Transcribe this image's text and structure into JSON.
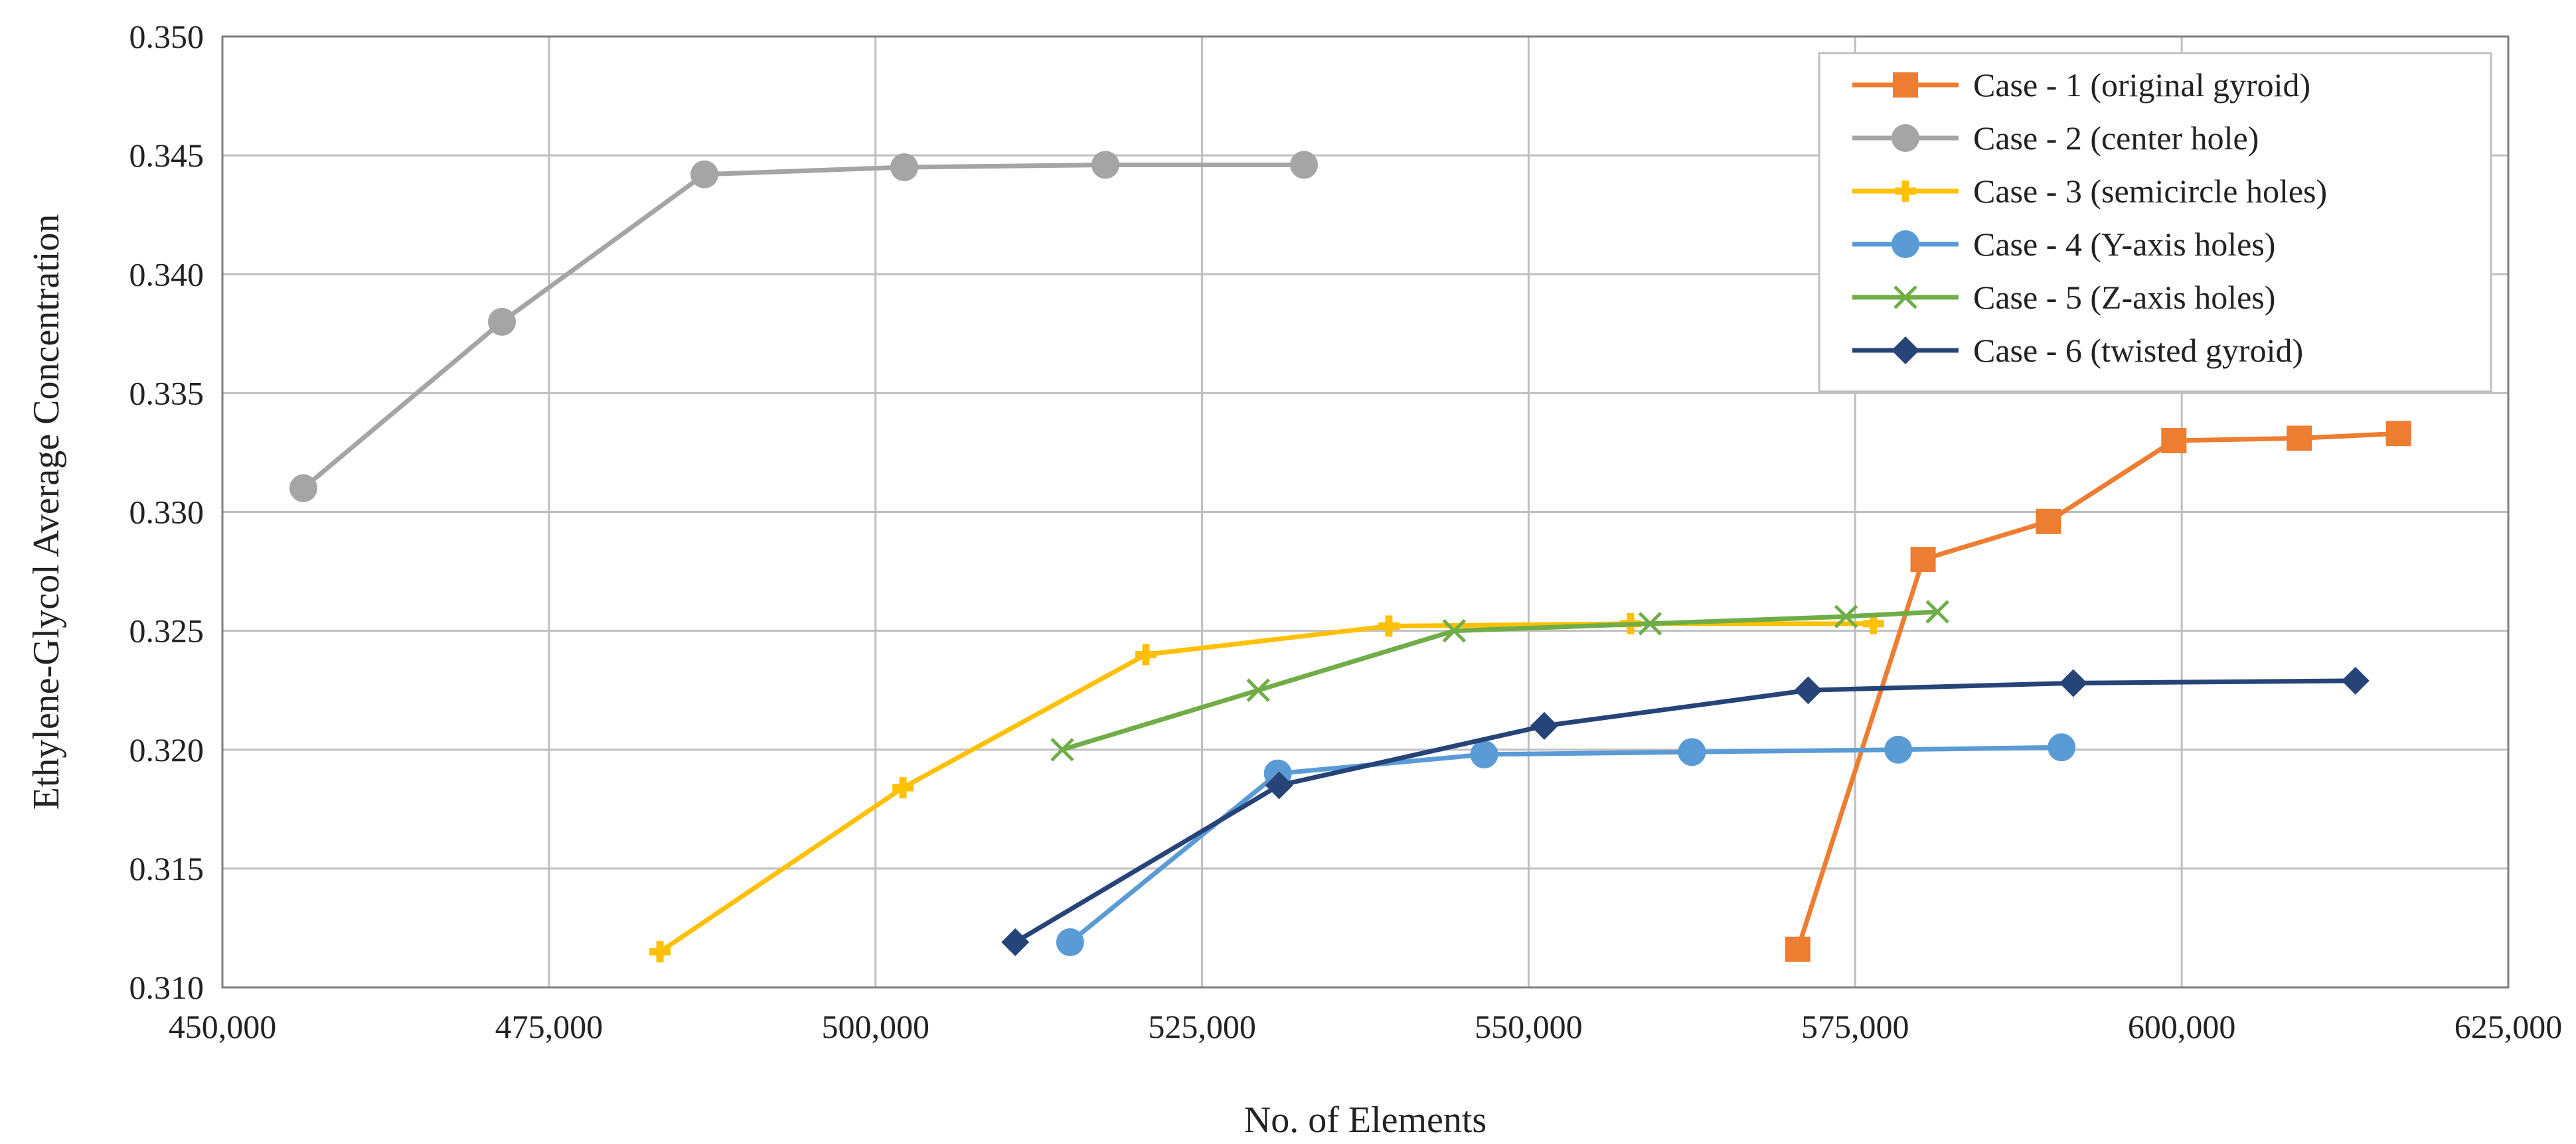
{
  "chart_data": {
    "type": "line",
    "title": "",
    "xlabel": "No. of Elements",
    "ylabel": "Ethylene-Glycol Average Concentration",
    "xlim": [
      450000,
      625000
    ],
    "ylim": [
      0.31,
      0.35
    ],
    "x_ticks": [
      450000,
      475000,
      500000,
      525000,
      550000,
      575000,
      600000,
      625000
    ],
    "x_tick_labels": [
      "450,000",
      "475,000",
      "500,000",
      "525,000",
      "550,000",
      "575,000",
      "600,000",
      "625,000"
    ],
    "y_ticks": [
      0.31,
      0.315,
      0.32,
      0.325,
      0.33,
      0.335,
      0.34,
      0.345,
      0.35
    ],
    "y_tick_labels": [
      "0.310",
      "0.315",
      "0.320",
      "0.325",
      "0.330",
      "0.335",
      "0.340",
      "0.345",
      "0.350"
    ],
    "grid": true,
    "legend_position": "top-right",
    "series": [
      {
        "name": "Case - 1 (original gyroid)",
        "color": "#ED7D31",
        "marker": "square",
        "x": [
          570600,
          580200,
          589800,
          599400,
          609000,
          616600
        ],
        "y": [
          0.3116,
          0.328,
          0.3296,
          0.333,
          0.3331,
          0.3333
        ]
      },
      {
        "name": "Case - 2 (center hole)",
        "color": "#A5A5A5",
        "marker": "circle",
        "x": [
          456200,
          471400,
          486900,
          502200,
          517600,
          532800
        ],
        "y": [
          0.331,
          0.338,
          0.3442,
          0.3445,
          0.3446,
          0.3446
        ]
      },
      {
        "name": "Case - 3 (semicircle holes)",
        "color": "#FFC000",
        "marker": "plus",
        "x": [
          483500,
          502100,
          520700,
          539300,
          557800,
          576400
        ],
        "y": [
          0.3115,
          0.3184,
          0.324,
          0.3252,
          0.3253,
          0.3253
        ]
      },
      {
        "name": "Case - 4 (Y-axis holes)",
        "color": "#5B9BD5",
        "marker": "circle",
        "x": [
          514900,
          530800,
          546600,
          562500,
          578300,
          590800
        ],
        "y": [
          0.3119,
          0.319,
          0.3198,
          0.3199,
          0.32,
          0.3201
        ]
      },
      {
        "name": "Case - 5 (Z-axis holes)",
        "color": "#70AD47",
        "marker": "cross",
        "x": [
          514300,
          529300,
          544300,
          559300,
          574300,
          581300
        ],
        "y": [
          0.32,
          0.3225,
          0.325,
          0.3253,
          0.3256,
          0.3258
        ]
      },
      {
        "name": "Case - 6 (twisted gyroid)",
        "color": "#264478",
        "marker": "diamond",
        "x": [
          510700,
          530900,
          551200,
          571400,
          591700,
          613300
        ],
        "y": [
          0.3119,
          0.3185,
          0.321,
          0.3225,
          0.3228,
          0.3229
        ]
      }
    ]
  }
}
